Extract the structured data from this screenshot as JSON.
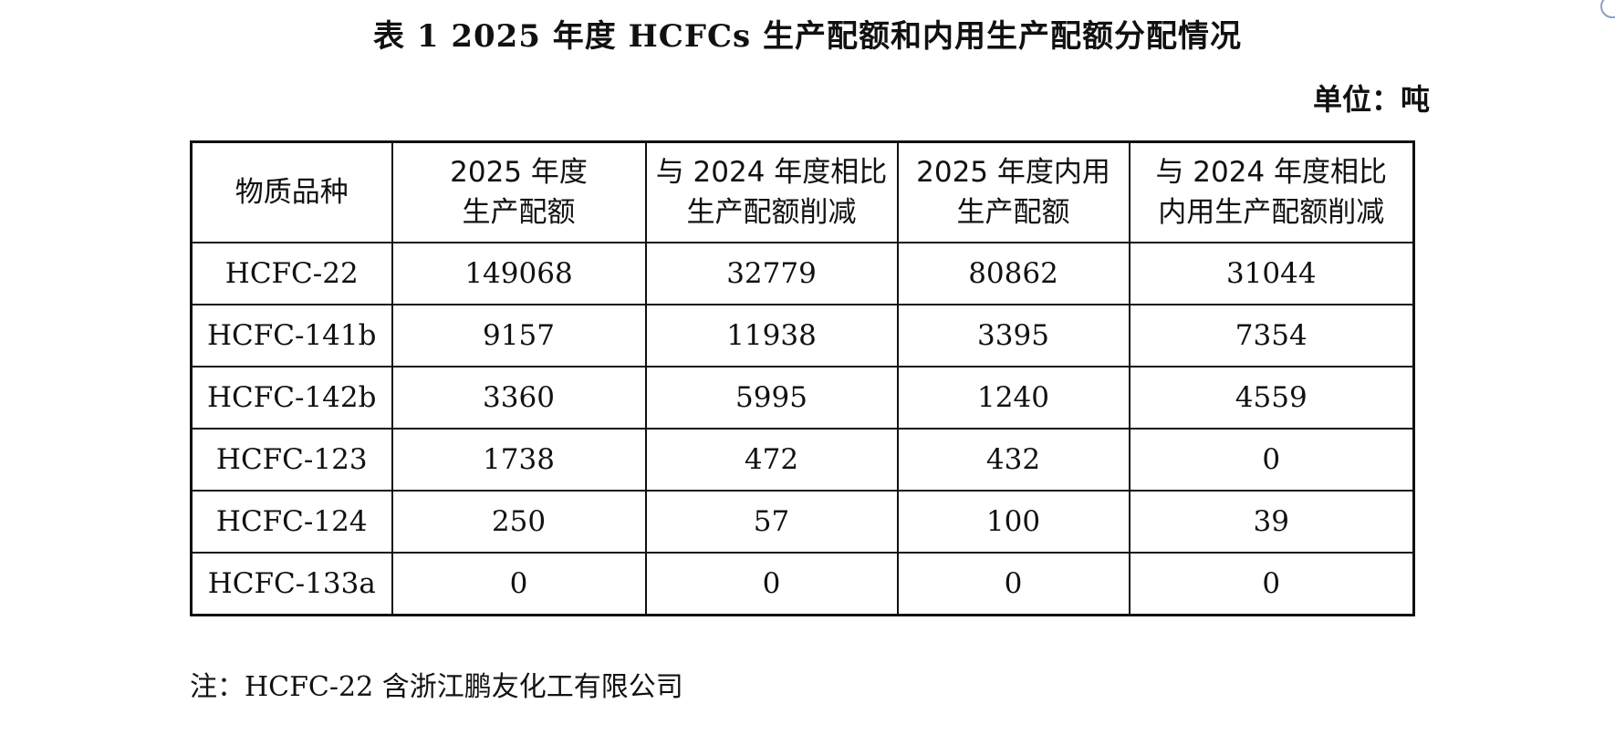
{
  "title": "表 1   2025 年度 HCFCs 生产配额和内用生产配额分配情况",
  "unit": "单位：吨",
  "table": {
    "headers": [
      {
        "line1": "物质品种",
        "line2": ""
      },
      {
        "line1": "2025 年度",
        "line2": "生产配额"
      },
      {
        "line1": "与 2024 年度相比",
        "line2": "生产配额削减"
      },
      {
        "line1": "2025 年度内用",
        "line2": "生产配额"
      },
      {
        "line1": "与 2024 年度相比",
        "line2": "内用生产配额削减"
      }
    ],
    "rows": [
      [
        "HCFC-22",
        "149068",
        "32779",
        "80862",
        "31044"
      ],
      [
        "HCFC-141b",
        "9157",
        "11938",
        "3395",
        "7354"
      ],
      [
        "HCFC-142b",
        "3360",
        "5995",
        "1240",
        "4559"
      ],
      [
        "HCFC-123",
        "1738",
        "472",
        "432",
        "0"
      ],
      [
        "HCFC-124",
        "250",
        "57",
        "100",
        "39"
      ],
      [
        "HCFC-133a",
        "0",
        "0",
        "0",
        "0"
      ]
    ]
  },
  "note": "注：HCFC-22 含浙江鹏友化工有限公司"
}
